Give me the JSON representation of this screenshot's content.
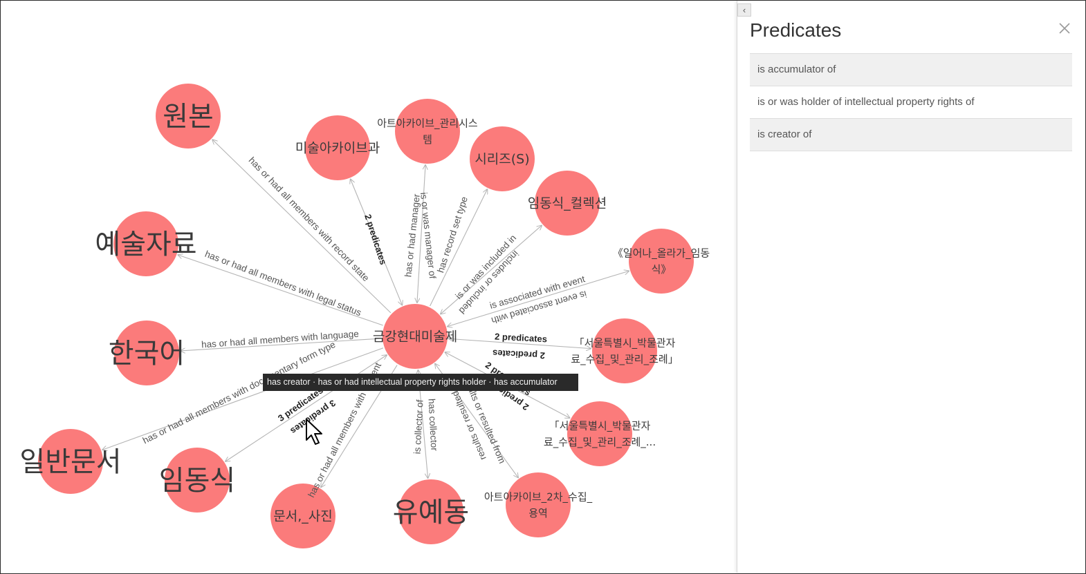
{
  "graph": {
    "nodes": [
      {
        "id": "center",
        "lines": [
          "금강현대미술제"
        ],
        "size": "medium"
      },
      {
        "id": "n1",
        "lines": [
          "원본"
        ],
        "size": "large"
      },
      {
        "id": "n2",
        "lines": [
          "미술아카이브과"
        ],
        "size": "medium"
      },
      {
        "id": "n3",
        "lines": [
          "아트아카이브_관리시스",
          "템"
        ],
        "size": "small"
      },
      {
        "id": "n4",
        "lines": [
          "시리즈(S)"
        ],
        "size": "medium"
      },
      {
        "id": "n5",
        "lines": [
          "임동식_컬렉션"
        ],
        "size": "medium"
      },
      {
        "id": "n6",
        "lines": [
          "《일어나_올라가_임동",
          "식》"
        ],
        "size": "small"
      },
      {
        "id": "n7",
        "lines": [
          "예술자료"
        ],
        "size": "large"
      },
      {
        "id": "n8",
        "lines": [
          "한국어"
        ],
        "size": "large"
      },
      {
        "id": "n9",
        "lines": [
          "「서울특별시_박물관자",
          "료_수집_및_관리_조례」"
        ],
        "size": "small"
      },
      {
        "id": "n10",
        "lines": [
          "「서울특별시_박물관자",
          "료_수집_및_관리_조례_..."
        ],
        "size": "small"
      },
      {
        "id": "n11",
        "lines": [
          "일반문서"
        ],
        "size": "large"
      },
      {
        "id": "n12",
        "lines": [
          "임동식"
        ],
        "size": "large"
      },
      {
        "id": "n13",
        "lines": [
          "문서,_사진"
        ],
        "size": "medium"
      },
      {
        "id": "n14",
        "lines": [
          "유예동"
        ],
        "size": "large"
      },
      {
        "id": "n15",
        "lines": [
          "아트아카이브_2차_수집_",
          "용역"
        ],
        "size": "small"
      }
    ],
    "edge_labels": {
      "e1": "has or had all members with record state",
      "e2": "2 predicates",
      "e3a": "has or had manager",
      "e3b": "is or was manager of",
      "e4": "has record set type",
      "e5a": "is or was included in",
      "e5b": "includes or included",
      "e6a": "is associated with event",
      "e6b": "is event associated with",
      "e7": "has or had all members with legal status",
      "e8": "has or had all members with language",
      "e9a": "2 predicates",
      "e9b": "2 predicates",
      "e10a": "2 predicates",
      "e10b": "2 predicates",
      "e11": "has or had all members with documentary form type",
      "e12a": "3 predicates",
      "e12b": "3 predicates",
      "e13": "has or had all members with content",
      "e14a": "is collector of",
      "e14b": "has collector",
      "e15a": "results or resulted from",
      "e15b": "results or resulted in"
    },
    "tooltip": "has creator · has or had intellectual property rights holder · has accumulator"
  },
  "panel": {
    "title": "Predicates",
    "items": [
      "is accumulator of",
      "is or was holder of intellectual property rights of",
      "is creator of"
    ]
  },
  "colors": {
    "node": "#fb7b7b",
    "edge": "#b4b4b4",
    "tooltip_bg": "#2a2a2a"
  },
  "icons": [
    "chevron-left-icon",
    "close-icon",
    "mouse-pointer-icon"
  ]
}
